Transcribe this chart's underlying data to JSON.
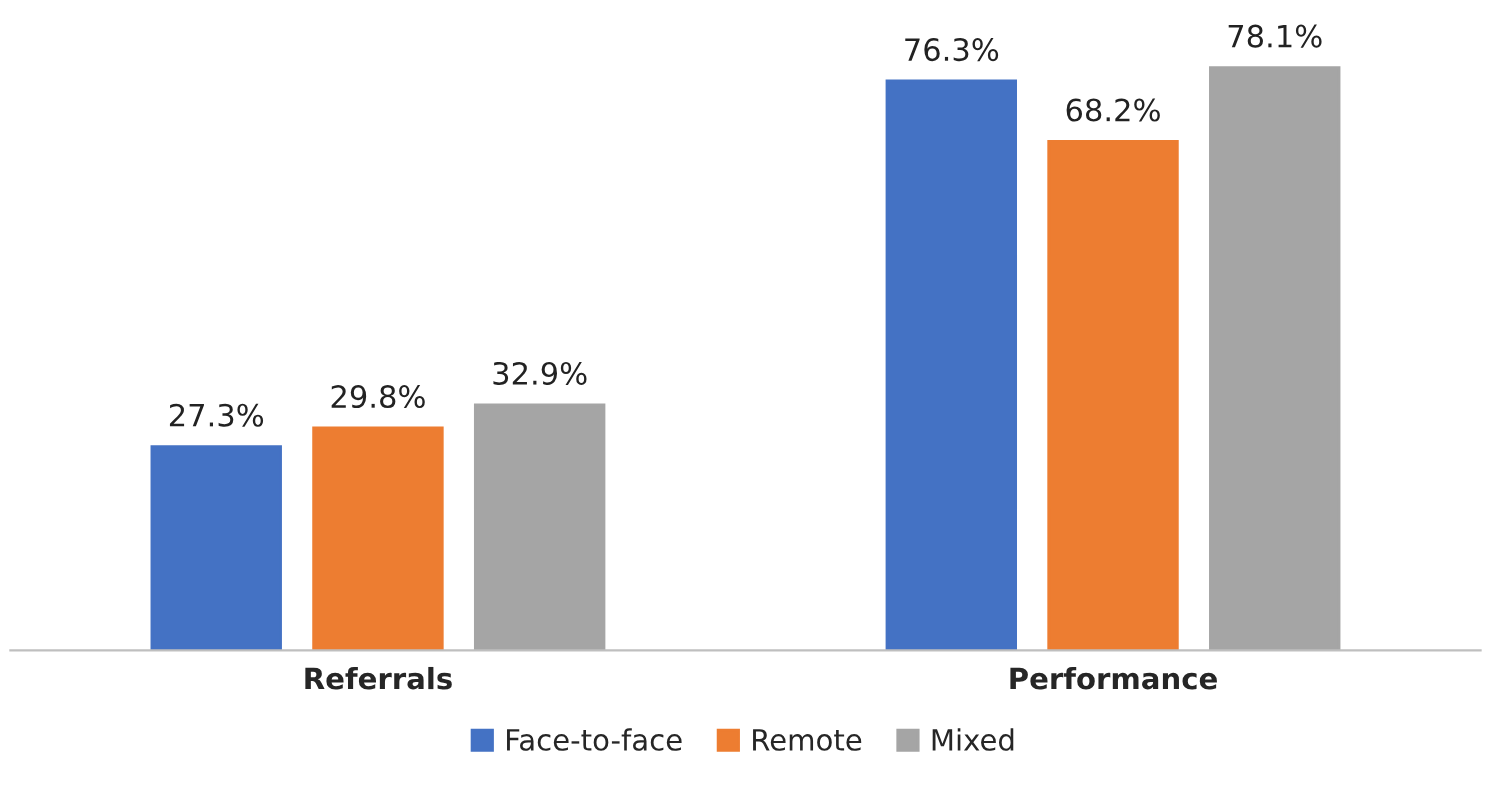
{
  "chart_data": {
    "type": "bar",
    "categories": [
      "Referrals",
      "Performance"
    ],
    "series": [
      {
        "name": "Face-to-face",
        "color": "#4472c4",
        "values": [
          27.3,
          76.3
        ],
        "value_labels": [
          "27.3%",
          "76.3%"
        ]
      },
      {
        "name": "Remote",
        "color": "#ed7d31",
        "values": [
          29.8,
          68.2
        ],
        "value_labels": [
          "29.8%",
          "68.2%"
        ]
      },
      {
        "name": "Mixed",
        "color": "#a5a5a5",
        "values": [
          32.9,
          78.1
        ],
        "value_labels": [
          "32.9%",
          "78.1%"
        ]
      }
    ],
    "legend": "bottom"
  }
}
